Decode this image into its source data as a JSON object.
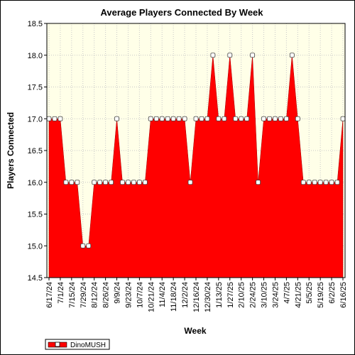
{
  "chart_data": {
    "type": "area",
    "title": "Average Players Connected By Week",
    "xlabel": "Week",
    "ylabel": "Players Connected",
    "ylim": [
      14.5,
      18.5
    ],
    "y_ticks": [
      "14.5",
      "15.0",
      "15.5",
      "16.0",
      "16.5",
      "17.0",
      "17.5",
      "18.0",
      "18.5"
    ],
    "x_tick_labels": [
      "6/17/24",
      "7/1/24",
      "7/15/24",
      "7/29/24",
      "8/12/24",
      "8/26/24",
      "9/9/24",
      "9/23/24",
      "10/7/24",
      "10/21/24",
      "11/4/24",
      "11/18/24",
      "12/2/24",
      "12/16/24",
      "12/30/24",
      "1/13/25",
      "1/27/25",
      "2/10/25",
      "2/24/25",
      "3/10/25",
      "3/24/25",
      "4/7/25",
      "4/21/25",
      "5/5/25",
      "5/19/25",
      "6/2/25",
      "6/16/25"
    ],
    "grid": true,
    "legend": "bottom-left",
    "colors": {
      "series": "#ff0000",
      "plot_background": "#ffffe8",
      "marker": "#ffffff"
    },
    "series": [
      {
        "name": "DinoMUSH",
        "x": [
          "6/17/24",
          "6/24/24",
          "7/1/24",
          "7/8/24",
          "7/15/24",
          "7/22/24",
          "7/29/24",
          "8/5/24",
          "8/12/24",
          "8/19/24",
          "8/26/24",
          "9/2/24",
          "9/9/24",
          "9/16/24",
          "9/23/24",
          "9/30/24",
          "10/7/24",
          "10/14/24",
          "10/21/24",
          "10/28/24",
          "11/4/24",
          "11/11/24",
          "11/18/24",
          "11/25/24",
          "12/2/24",
          "12/9/24",
          "12/16/24",
          "12/23/24",
          "12/30/24",
          "1/6/25",
          "1/13/25",
          "1/20/25",
          "1/27/25",
          "2/3/25",
          "2/10/25",
          "2/17/25",
          "2/24/25",
          "3/3/25",
          "3/10/25",
          "3/17/25",
          "3/24/25",
          "3/31/25",
          "4/7/25",
          "4/14/25",
          "4/21/25",
          "4/28/25",
          "5/5/25",
          "5/12/25",
          "5/19/25",
          "5/26/25",
          "6/2/25",
          "6/9/25",
          "6/16/25"
        ],
        "values": [
          17,
          17,
          17,
          16,
          16,
          16,
          15,
          15,
          16,
          16,
          16,
          16,
          17,
          16,
          16,
          16,
          16,
          16,
          17,
          17,
          17,
          17,
          17,
          17,
          17,
          16,
          17,
          17,
          17,
          18,
          17,
          17,
          18,
          17,
          17,
          17,
          18,
          16,
          17,
          17,
          17,
          17,
          17,
          18,
          17,
          16,
          16,
          16,
          16,
          16,
          16,
          16,
          17
        ]
      }
    ]
  }
}
